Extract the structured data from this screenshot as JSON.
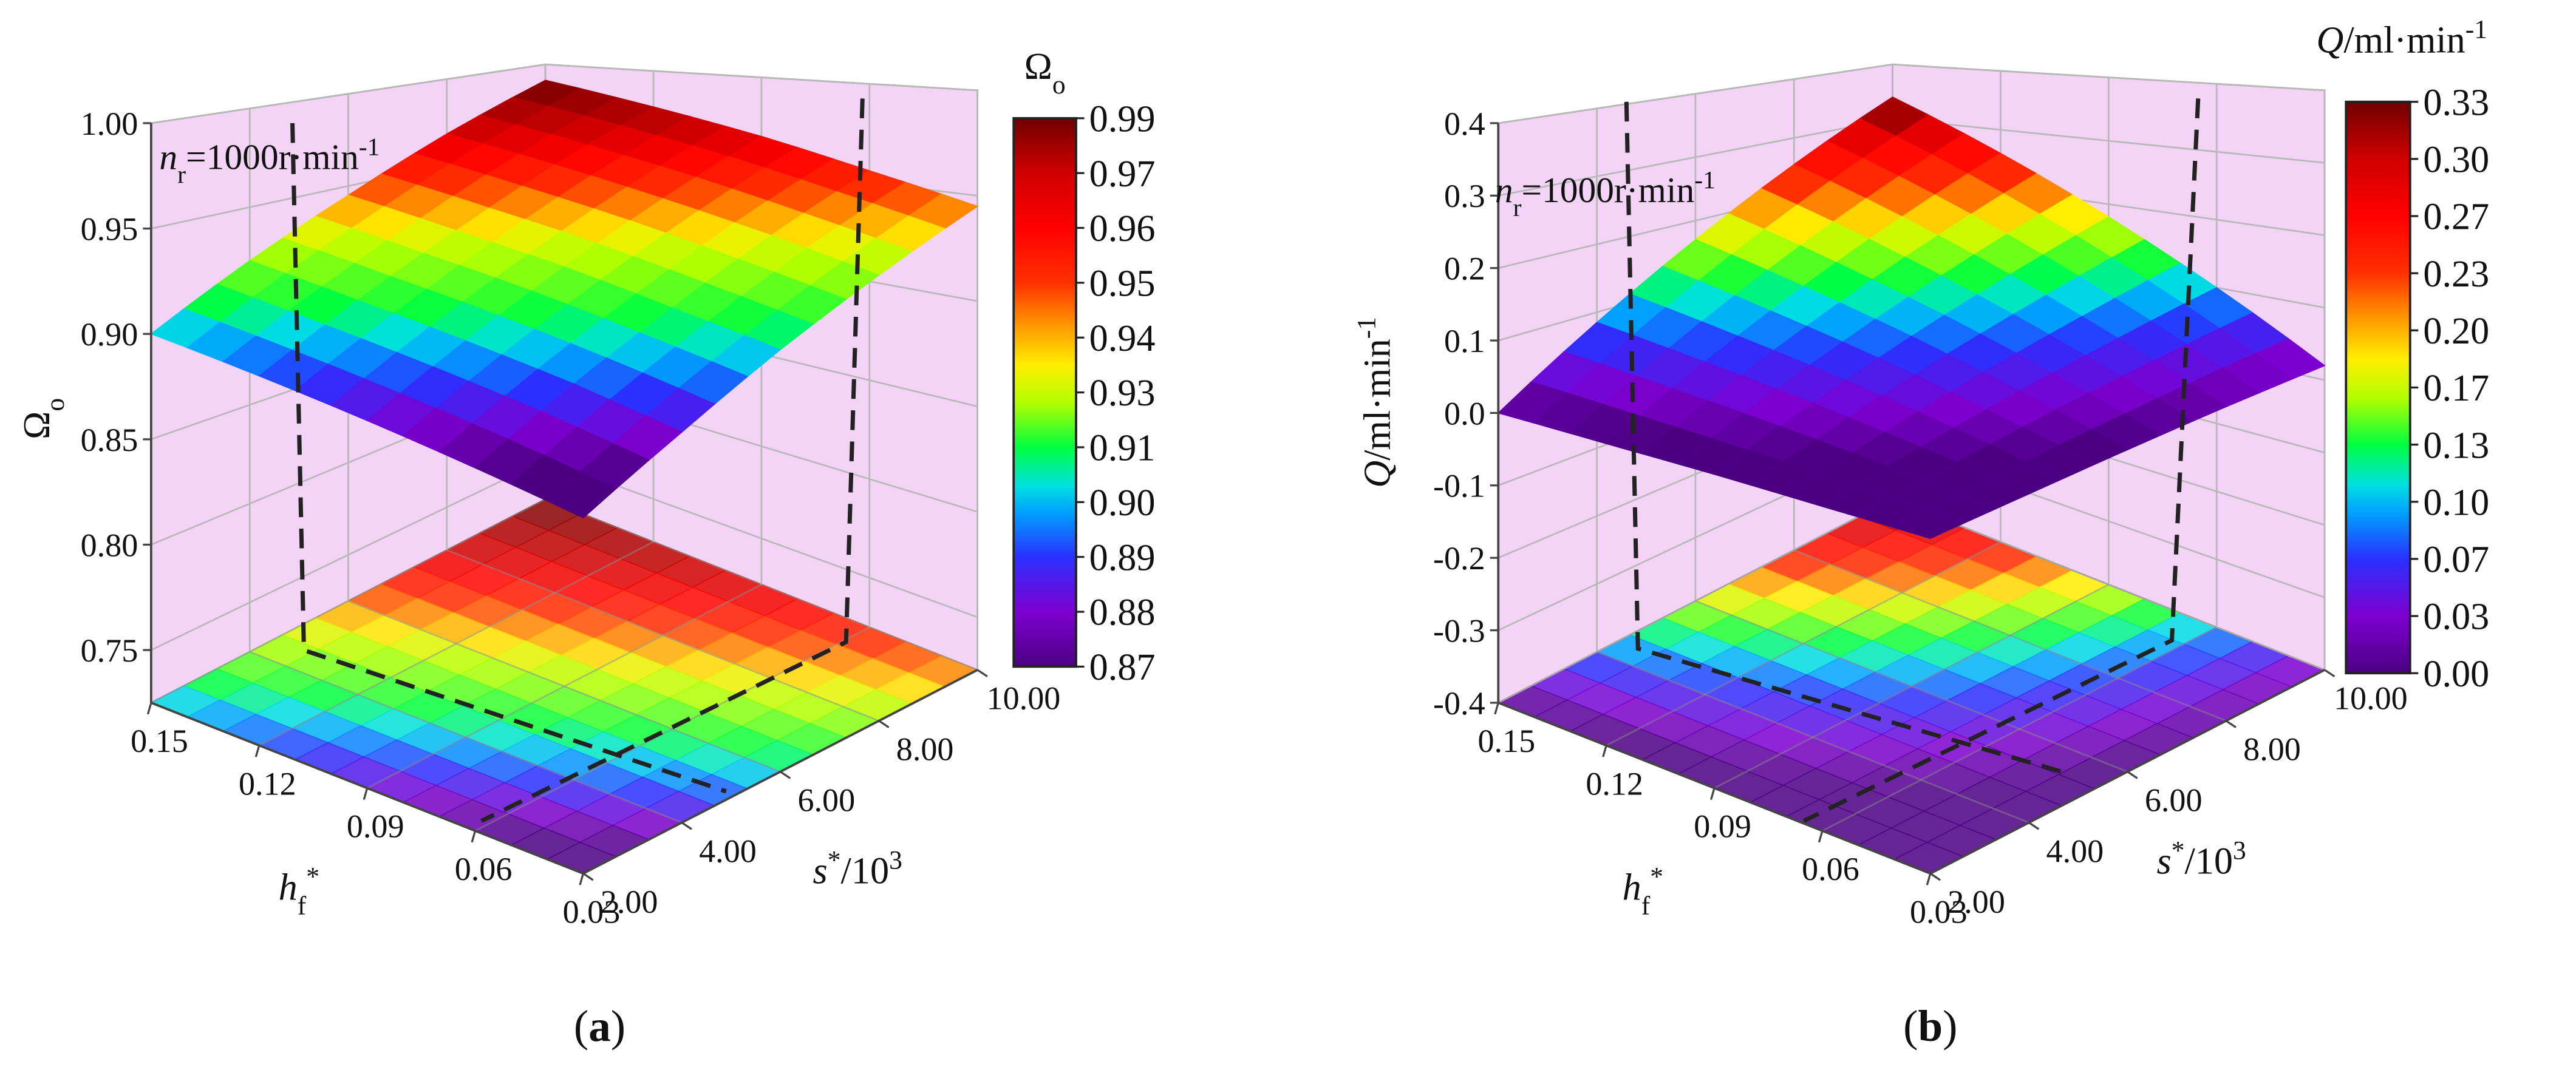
{
  "chart_data": [
    {
      "type": "surface3d",
      "panel_label": [
        {
          "text": "("
        },
        {
          "text": "a",
          "bold": true
        },
        {
          "text": ")"
        }
      ],
      "annotation": [
        {
          "text": "n",
          "italic": true
        },
        {
          "text": "r",
          "pos": "sub"
        },
        {
          "text": "=1000r·min"
        },
        {
          "text": "-1",
          "pos": "sup"
        }
      ],
      "zlabel": [
        {
          "text": "Ω"
        },
        {
          "text": "o",
          "pos": "sub"
        }
      ],
      "xlabel": [
        {
          "text": "h",
          "italic": true
        },
        {
          "text": "f",
          "pos": "sub"
        },
        {
          "text": "*",
          "pos": "sup"
        }
      ],
      "ylabel": [
        {
          "text": "s",
          "italic": true
        },
        {
          "text": "*",
          "pos": "sup"
        },
        {
          "text": "/10"
        },
        {
          "text": "3",
          "pos": "sup"
        }
      ],
      "colorbar_title": [
        {
          "text": "Ω"
        },
        {
          "text": "o",
          "pos": "sub"
        }
      ],
      "x": [
        0.03,
        0.06,
        0.09,
        0.12,
        0.15
      ],
      "y": [
        2,
        4,
        6,
        8,
        10
      ],
      "z": [
        [
          0.86,
          0.881,
          0.903,
          0.924,
          0.945
        ],
        [
          0.87,
          0.892,
          0.913,
          0.935,
          0.956
        ],
        [
          0.88,
          0.902,
          0.924,
          0.946,
          0.968
        ],
        [
          0.89,
          0.912,
          0.934,
          0.957,
          0.979
        ],
        [
          0.9,
          0.923,
          0.945,
          0.968,
          0.99
        ]
      ],
      "xlim": [
        0.03,
        0.15
      ],
      "ylim": [
        2,
        10
      ],
      "zlim": [
        0.725,
        1.0
      ],
      "xticks": [
        0.03,
        0.06,
        0.09,
        0.12,
        0.15
      ],
      "yticks": [
        {
          "value": 2,
          "label": "2.00"
        },
        {
          "value": 4,
          "label": "4.00"
        },
        {
          "value": 6,
          "label": "6.00"
        },
        {
          "value": 8,
          "label": "8.00"
        },
        {
          "value": 10,
          "label": "10.00"
        }
      ],
      "zticks": [
        0.75,
        {
          "value": 0.8,
          "label": "0.80"
        },
        0.85,
        {
          "value": 0.9,
          "label": "0.90"
        },
        0.95,
        {
          "value": 1,
          "label": "1.00"
        }
      ],
      "colorbar_levels": [
        0.99,
        0.97,
        0.96,
        0.95,
        0.94,
        0.93,
        0.91,
        {
          "value": 0.9,
          "label": "0.90"
        },
        0.89,
        0.88,
        0.87
      ],
      "grid": true,
      "wall_color": "#f4d4f6"
    },
    {
      "type": "surface3d",
      "panel_label": [
        {
          "text": "("
        },
        {
          "text": "b",
          "bold": true
        },
        {
          "text": ")"
        }
      ],
      "annotation": [
        {
          "text": "n",
          "italic": true
        },
        {
          "text": "r",
          "pos": "sub"
        },
        {
          "text": "=1000r·min"
        },
        {
          "text": "-1",
          "pos": "sup"
        }
      ],
      "zlabel": [
        {
          "text": "Q",
          "italic": true
        },
        {
          "text": "/ml·min"
        },
        {
          "text": "-1",
          "pos": "sup"
        }
      ],
      "xlabel": [
        {
          "text": "h",
          "italic": true
        },
        {
          "text": "f",
          "pos": "sub"
        },
        {
          "text": "*",
          "pos": "sup"
        }
      ],
      "ylabel": [
        {
          "text": "s",
          "italic": true
        },
        {
          "text": "*",
          "pos": "sup"
        },
        {
          "text": "/10"
        },
        {
          "text": "3",
          "pos": "sup"
        }
      ],
      "colorbar_title": [
        {
          "text": "Q",
          "italic": true
        },
        {
          "text": "/ml·min"
        },
        {
          "text": "-1",
          "pos": "sup"
        }
      ],
      "x": [
        0.03,
        0.06,
        0.09,
        0.12,
        0.15
      ],
      "y": [
        2,
        4,
        6,
        8,
        10
      ],
      "z": [
        [
          -0.03,
          -0.018,
          -0.005,
          0.008,
          0.02
        ],
        [
          -0.023,
          0.008,
          0.039,
          0.069,
          0.1
        ],
        [
          -0.015,
          0.034,
          0.083,
          0.131,
          0.18
        ],
        [
          -0.008,
          0.059,
          0.126,
          0.193,
          0.26
        ],
        [
          0.0,
          0.085,
          0.17,
          0.255,
          0.34
        ]
      ],
      "xlim": [
        0.03,
        0.15
      ],
      "ylim": [
        2,
        10
      ],
      "zlim": [
        -0.4,
        0.4
      ],
      "xticks": [
        0.03,
        0.06,
        0.09,
        0.12,
        0.15
      ],
      "yticks": [
        {
          "value": 2,
          "label": "2.00"
        },
        {
          "value": 4,
          "label": "4.00"
        },
        {
          "value": 6,
          "label": "6.00"
        },
        {
          "value": 8,
          "label": "8.00"
        },
        {
          "value": 10,
          "label": "10.00"
        }
      ],
      "zticks": [
        -0.4,
        -0.3,
        -0.2,
        -0.1,
        {
          "value": 0,
          "label": "0.0"
        },
        0.1,
        0.2,
        0.3,
        0.4
      ],
      "colorbar_levels": [
        0.33,
        {
          "value": 0.3,
          "label": "0.30"
        },
        0.27,
        0.23,
        {
          "value": 0.2,
          "label": "0.20"
        },
        0.17,
        0.13,
        {
          "value": 0.1,
          "label": "0.10"
        },
        0.07,
        0.03,
        {
          "value": 0,
          "label": "0.00"
        }
      ],
      "grid": true,
      "wall_color": "#f4d4f6"
    }
  ]
}
